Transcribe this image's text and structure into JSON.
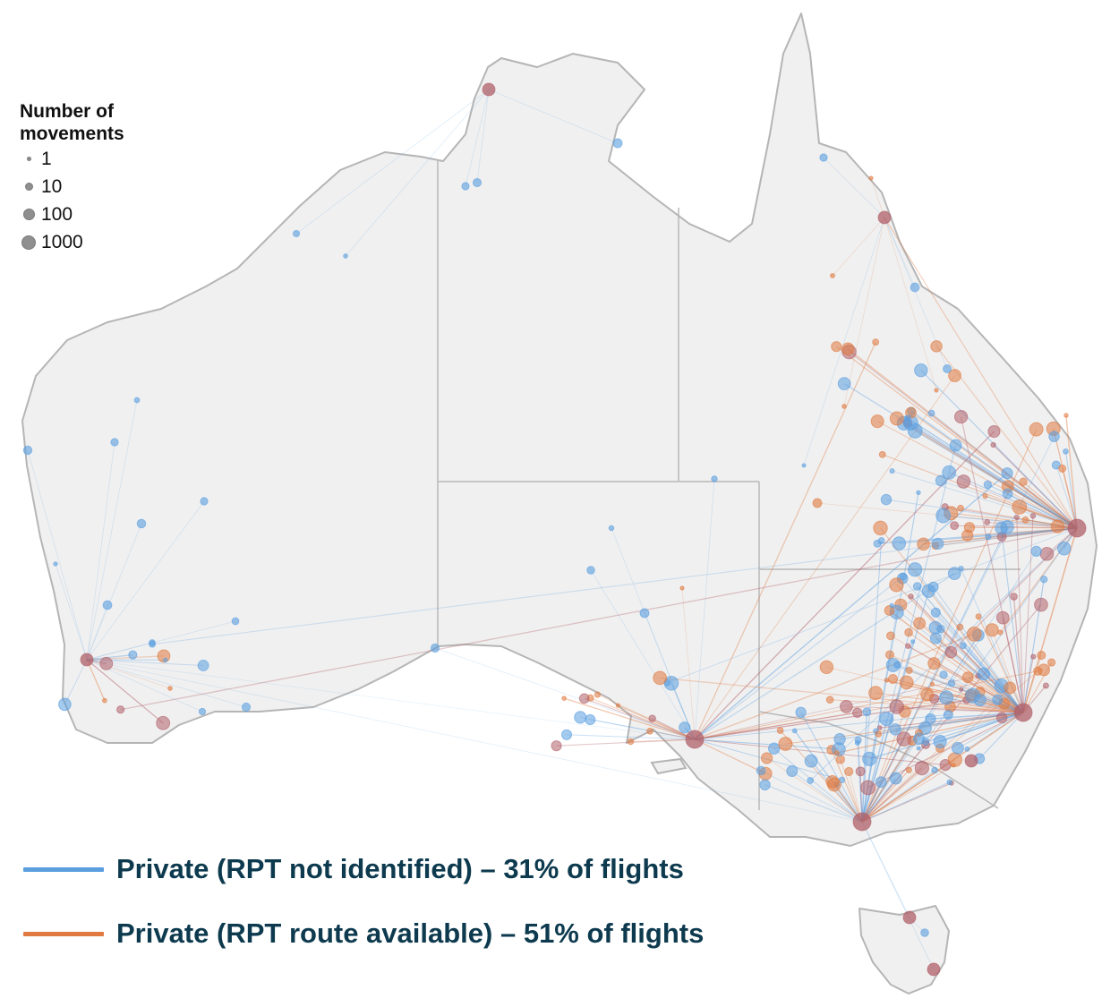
{
  "colors": {
    "land": "#f0f0f0",
    "coast": "#b5b5b5",
    "state_border": "#b8b8b8",
    "private_blue": "#5a9ee0",
    "private_orange": "#e07a40",
    "overlap": "#b0606a"
  },
  "size_legend": {
    "title_line1": "Number of",
    "title_line2": "movements",
    "entries": [
      {
        "label": "1",
        "value": 1
      },
      {
        "label": "10",
        "value": 10
      },
      {
        "label": "100",
        "value": 100
      },
      {
        "label": "1000",
        "value": 1000
      }
    ]
  },
  "route_legend": [
    {
      "label": "Private (RPT not identified) – 31% of flights",
      "color": "#5a9ee0"
    },
    {
      "label": "Private (RPT route available) – 51% of flights",
      "color": "#e07a40"
    }
  ]
}
